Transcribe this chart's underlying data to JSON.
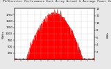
{
  "title": "Solar PV/Inverter Performance East Array Actual & Average Power Output",
  "bg_color": "#e8e8e8",
  "plot_bg_color": "#ffffff",
  "grid_color": "#aaaaaa",
  "area_color": "#ff0000",
  "ylim": [
    0,
    2000
  ],
  "xlim": [
    0,
    288
  ],
  "right_ylim": [
    0,
    14
  ],
  "right_yticks": [
    2,
    4,
    6,
    8,
    10,
    12,
    14
  ],
  "left_yticks": [
    250,
    500,
    750,
    1000,
    1250,
    1500,
    1750
  ],
  "noise_seed": 42,
  "title_fontsize": 3.2,
  "tick_fontsize": 2.8,
  "label_fontsize": 3.0,
  "start_idx": 42,
  "end_idx": 246,
  "peak_value": 1820
}
